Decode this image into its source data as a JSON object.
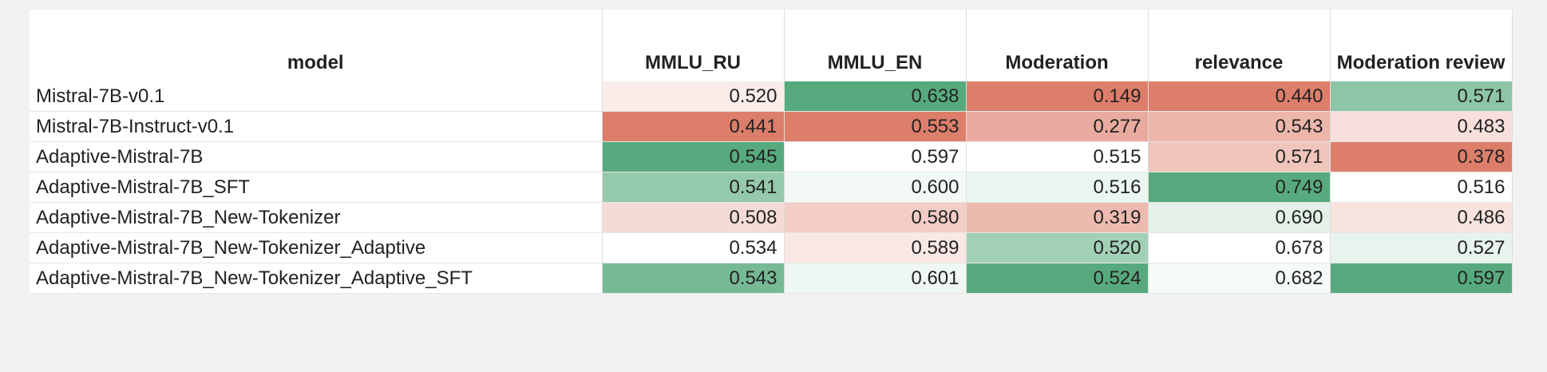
{
  "table": {
    "columns": [
      "model",
      "MMLU_RU",
      "MMLU_EN",
      "Moderation",
      "relevance",
      "Moderation review"
    ],
    "rows": [
      [
        "Mistral-7B-v0.1",
        "0.520",
        "0.638",
        "0.149",
        "0.440",
        "0.571"
      ],
      [
        "Mistral-7B-Instruct-v0.1",
        "0.441",
        "0.553",
        "0.277",
        "0.543",
        "0.483"
      ],
      [
        "Adaptive-Mistral-7B",
        "0.545",
        "0.597",
        "0.515",
        "0.571",
        "0.378"
      ],
      [
        "Adaptive-Mistral-7B_SFT",
        "0.541",
        "0.600",
        "0.516",
        "0.749",
        "0.516"
      ],
      [
        "Adaptive-Mistral-7B_New-Tokenizer",
        "0.508",
        "0.580",
        "0.319",
        "0.690",
        "0.486"
      ],
      [
        "Adaptive-Mistral-7B_New-Tokenizer_Adaptive",
        "0.534",
        "0.589",
        "0.520",
        "0.678",
        "0.527"
      ],
      [
        "Adaptive-Mistral-7B_New-Tokenizer_Adaptive_SFT",
        "0.543",
        "0.601",
        "0.524",
        "0.682",
        "0.597"
      ]
    ]
  }
}
